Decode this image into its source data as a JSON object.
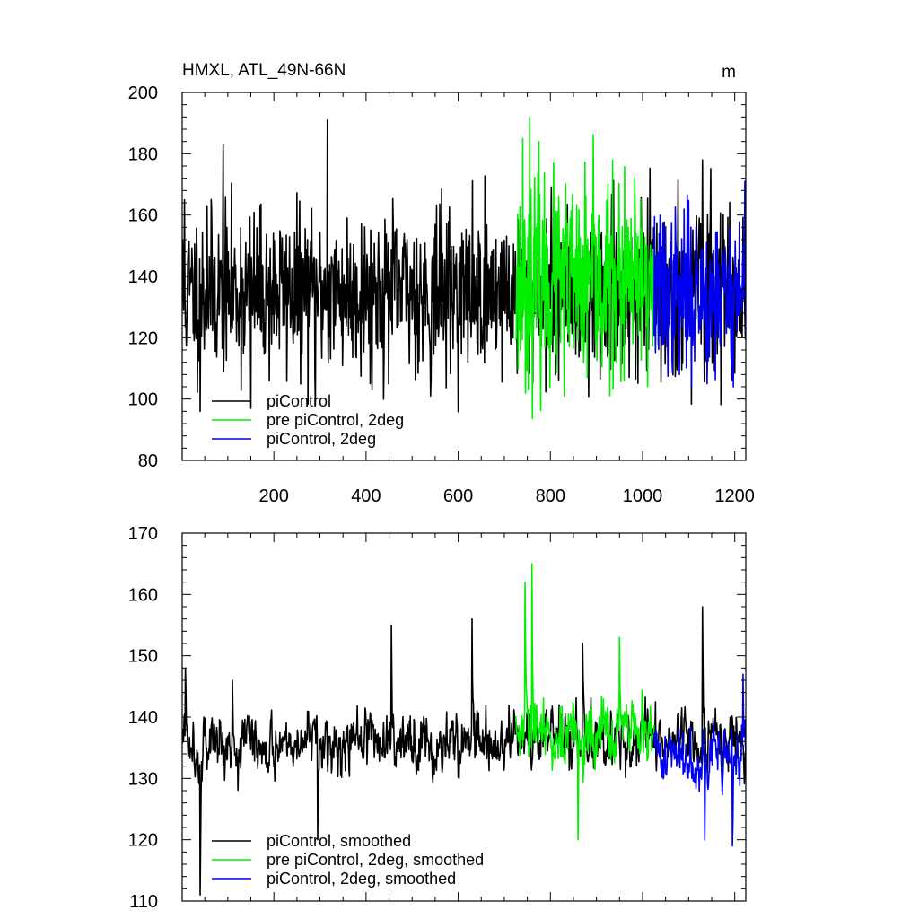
{
  "colors": {
    "piControl": "#000000",
    "pre_2deg": "#00ee00",
    "picontrol_2deg": "#0000ee"
  },
  "chart_data": [
    {
      "type": "line",
      "title": "HMXL, ATL_49N-66N",
      "units": "m",
      "xlim": [
        1,
        1224
      ],
      "ylim": [
        80,
        200
      ],
      "xticks": [
        200,
        400,
        600,
        800,
        1000,
        1200
      ],
      "yticks": [
        80,
        100,
        120,
        140,
        160,
        180,
        200
      ],
      "grid": false,
      "legend_position": "bottom-left",
      "series": [
        {
          "name": "piControl",
          "color_key": "piControl",
          "x_range": [
            1,
            1224
          ],
          "baseline": 135,
          "noise": 13,
          "seed": 11,
          "anchors": [
            [
              6,
              165
            ],
            [
              40,
              96
            ],
            [
              55,
              163
            ],
            [
              90,
              183
            ],
            [
              150,
              97
            ],
            [
              290,
              98
            ],
            [
              316,
              191
            ],
            [
              540,
              101
            ],
            [
              1130,
              178
            ]
          ]
        },
        {
          "name": "pre piControl, 2deg",
          "color_key": "pre_2deg",
          "x_range": [
            725,
            1025
          ],
          "baseline": 137,
          "noise": 16,
          "seed": 23,
          "anchors": [
            [
              740,
              185
            ],
            [
              755,
              192
            ],
            [
              775,
              184
            ],
            [
              830,
              101
            ],
            [
              880,
              107
            ],
            [
              960,
              106
            ]
          ]
        },
        {
          "name": "piControl, 2deg",
          "color_key": "picontrol_2deg",
          "x_range": [
            1025,
            1224
          ],
          "baseline": 135,
          "noise": 13,
          "seed": 37,
          "anchors": [
            [
              1080,
              108
            ],
            [
              1140,
              105
            ],
            [
              1195,
              106
            ],
            [
              1222,
              171
            ]
          ]
        }
      ]
    },
    {
      "type": "line",
      "xlim": [
        1,
        1224
      ],
      "ylim": [
        110,
        170
      ],
      "xticks": [
        200,
        400,
        600,
        800,
        1000,
        1200
      ],
      "yticks": [
        110,
        120,
        130,
        140,
        150,
        160,
        170
      ],
      "grid": false,
      "legend_position": "bottom-left",
      "series": [
        {
          "name": "piControl, smoothed",
          "color_key": "piControl",
          "x_range": [
            1,
            1224
          ],
          "baseline": 136,
          "noise": 4.5,
          "seed": 5,
          "anchors": [
            [
              8,
              148
            ],
            [
              40,
              111
            ],
            [
              110,
              146
            ],
            [
              295,
              120
            ],
            [
              455,
              155
            ],
            [
              630,
              156
            ],
            [
              870,
              152
            ],
            [
              1130,
              158
            ]
          ]
        },
        {
          "name": "pre piControl, 2deg, smoothed",
          "color_key": "pre_2deg",
          "x_range": [
            725,
            1025
          ],
          "baseline": 137,
          "noise": 5,
          "seed": 29,
          "anchors": [
            [
              745,
              162
            ],
            [
              760,
              165
            ],
            [
              860,
              120
            ],
            [
              950,
              153
            ]
          ]
        },
        {
          "name": "piControl, 2deg, smoothed",
          "color_key": "picontrol_2deg",
          "x_range": [
            1025,
            1224
          ],
          "baseline": 134,
          "noise": 4.5,
          "seed": 41,
          "anchors": [
            [
              1135,
              120
            ],
            [
              1195,
              119
            ],
            [
              1218,
              147
            ]
          ]
        }
      ]
    }
  ]
}
